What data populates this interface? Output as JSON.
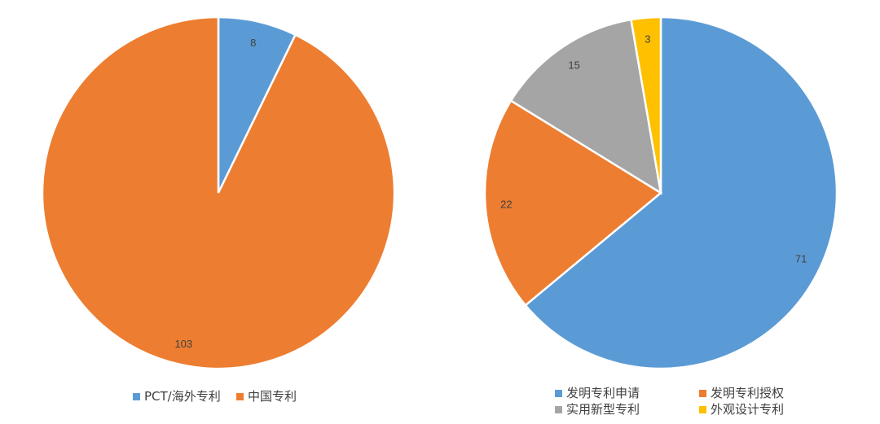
{
  "chart_data": [
    {
      "type": "pie",
      "categories": [
        "PCT/海外专利",
        "中国专利"
      ],
      "values": [
        8,
        103
      ],
      "colors": [
        "#5B9BD5",
        "#ED7D31"
      ],
      "legend_position": "bottom",
      "title": ""
    },
    {
      "type": "pie",
      "categories": [
        "发明专利申请",
        "发明专利授权",
        "实用新型专利",
        "外观设计专利"
      ],
      "values": [
        71,
        22,
        15,
        3
      ],
      "colors": [
        "#5B9BD5",
        "#ED7D31",
        "#A5A5A5",
        "#FFC000"
      ],
      "legend_position": "bottom",
      "title": ""
    }
  ]
}
